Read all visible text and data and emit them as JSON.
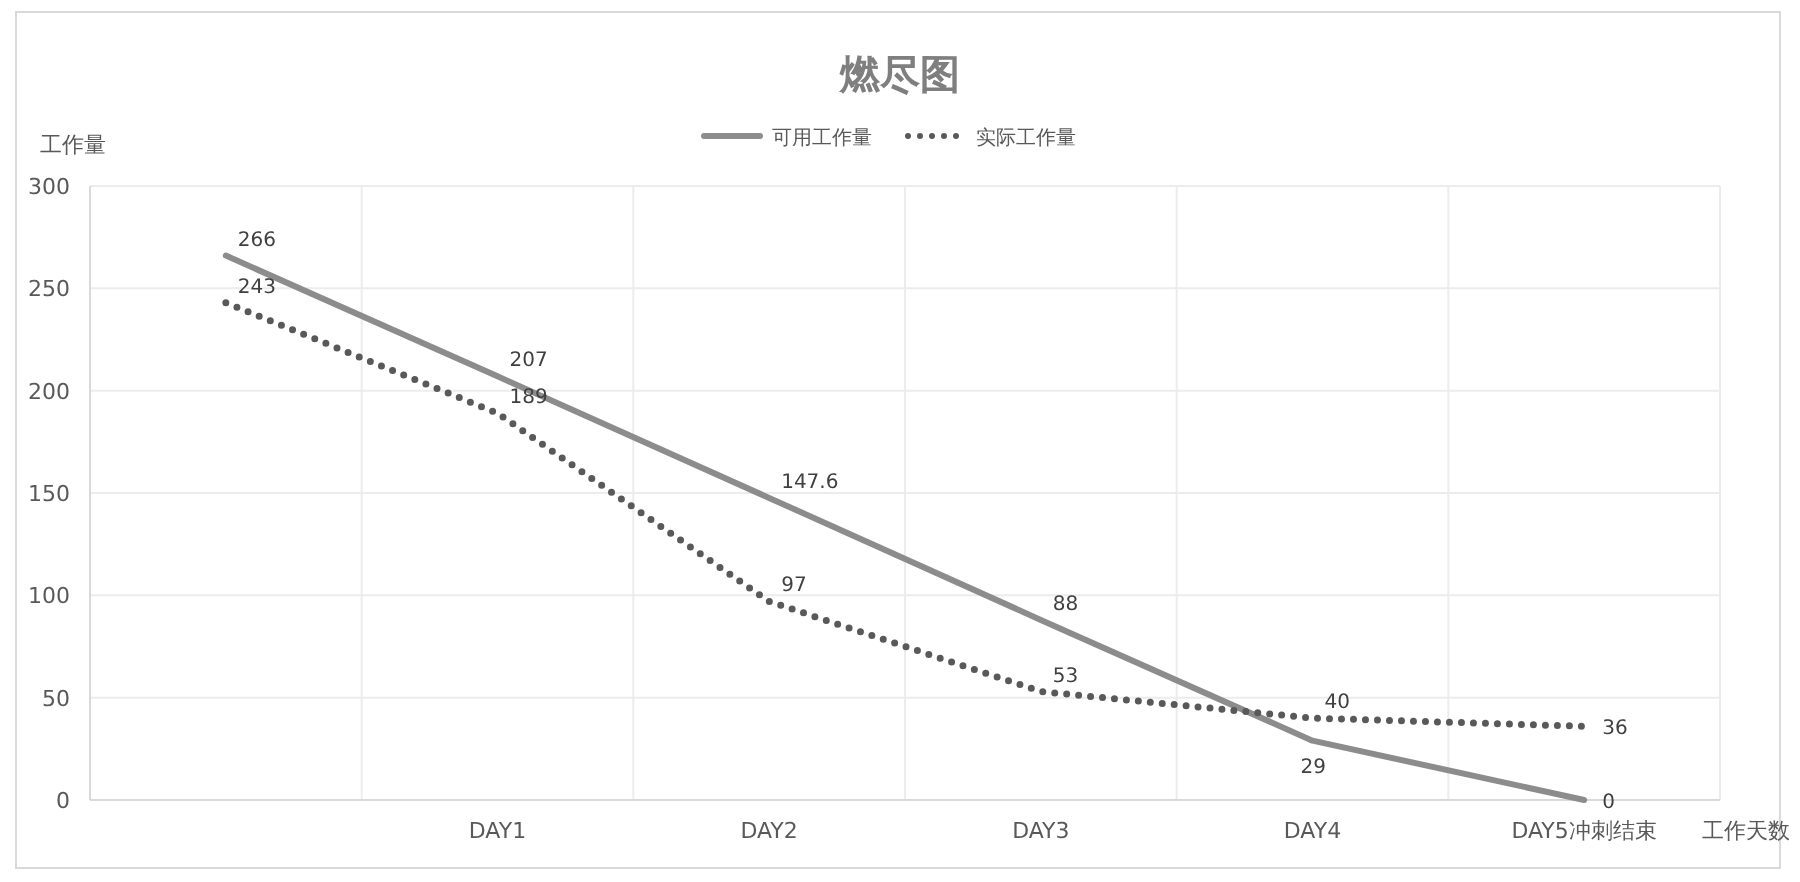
{
  "chart_data": {
    "type": "line",
    "title": "燃尽图",
    "xlabel": "工作天数",
    "ylabel": "工作量",
    "categories": [
      null,
      "DAY1",
      "DAY2",
      "DAY3",
      "DAY4",
      "DAY5冲刺结束"
    ],
    "series": [
      {
        "name": "可用工作量",
        "color": "#8c8c8c",
        "line_style": "solid",
        "values": [
          266,
          207,
          147.6,
          88,
          29,
          0
        ]
      },
      {
        "name": "实际工作量",
        "color": "#595959",
        "line_style": "dotted",
        "values": [
          243,
          189,
          97,
          53,
          40,
          36
        ]
      }
    ],
    "ylim": [
      0,
      300
    ],
    "yticks": [
      0,
      50,
      100,
      150,
      200,
      250,
      300
    ],
    "grid": true,
    "legend": "top",
    "data_labels": true
  }
}
